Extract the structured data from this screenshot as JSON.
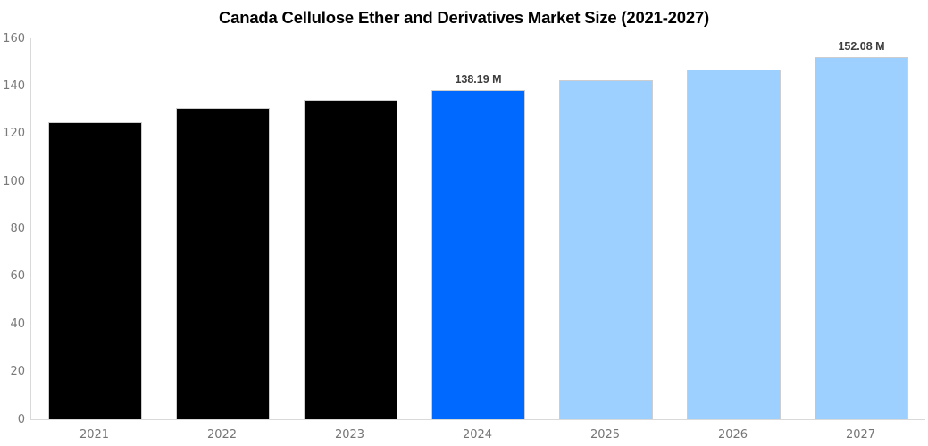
{
  "title": "Canada Cellulose Ether and Derivatives Market Size (2021-2027)",
  "chart_data": {
    "type": "bar",
    "title": "Canada Cellulose Ether and Derivatives Market Size (2021-2027)",
    "categories": [
      "2021",
      "2022",
      "2023",
      "2024",
      "2025",
      "2026",
      "2027"
    ],
    "values": [
      124.9,
      130.9,
      134.2,
      138.19,
      142.5,
      147.0,
      152.08
    ],
    "value_labels": [
      "",
      "",
      "",
      "138.19 M",
      "",
      "",
      "152.08 M"
    ],
    "bar_colors": [
      "#000000",
      "#000000",
      "#000000",
      "#0069ff",
      "#9dcfff",
      "#9dcfff",
      "#9dcfff"
    ],
    "xlabel": "",
    "ylabel": "",
    "ylim": [
      0,
      160
    ],
    "yticks": [
      0,
      20,
      40,
      60,
      80,
      100,
      120,
      140,
      160
    ],
    "grid": false,
    "legend": "none",
    "unit": "M"
  },
  "colors": {
    "historical_bar": "#000000",
    "highlight_bar": "#0069ff",
    "forecast_bar": "#9dcfff",
    "axis_line": "#d9d9d9",
    "bar_edge": "#cdcdcd",
    "tick_text": "#757575",
    "value_label_text": "#3d3d3d",
    "title_text": "#000000",
    "background": "#ffffff"
  }
}
